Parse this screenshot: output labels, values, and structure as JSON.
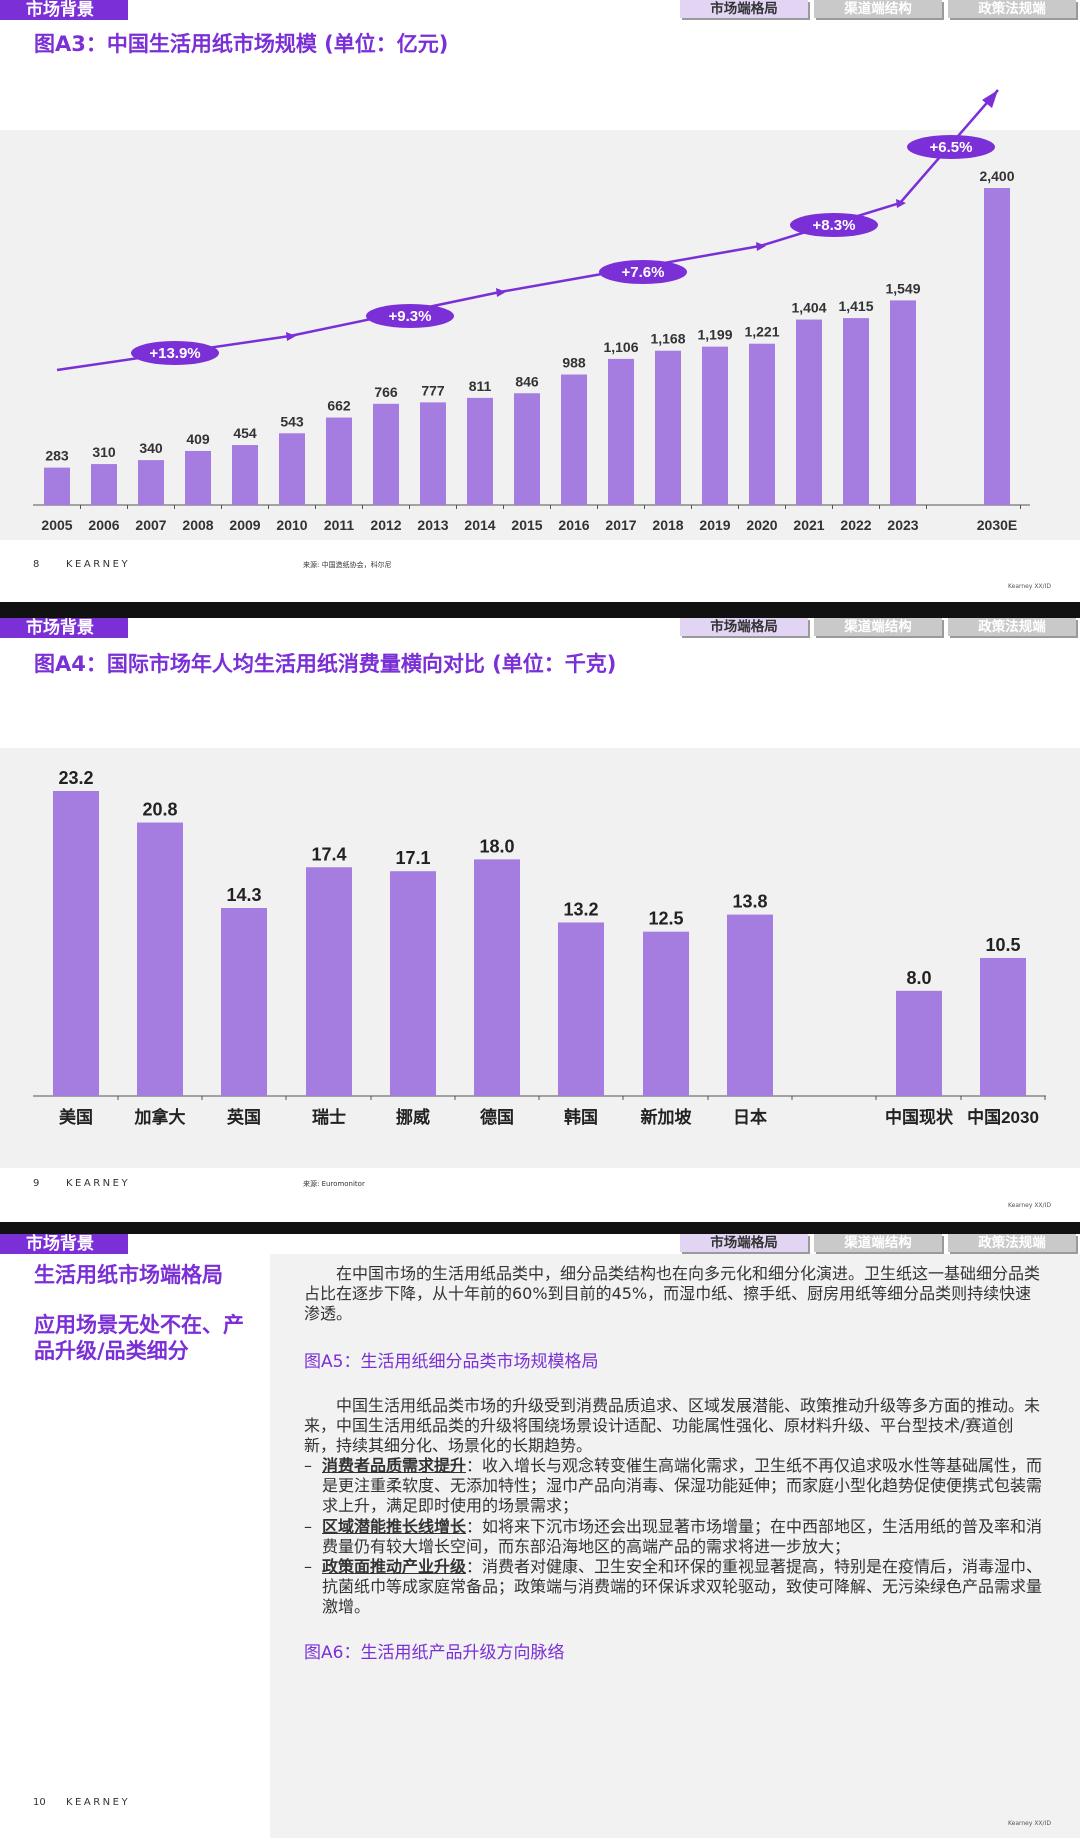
{
  "colors": {
    "accent": "#7b2fd6",
    "bar": "#a57de0",
    "plot_bg": "#f1f1f1"
  },
  "header": {
    "section_tag": "市场背景",
    "tabs": [
      {
        "label": "市场端格局",
        "active": true
      },
      {
        "label": "渠道端结构",
        "active": false
      },
      {
        "label": "政策法规端",
        "active": false
      }
    ]
  },
  "footer": {
    "brand": "KEARNEY",
    "corner": "Kearney XX/ID"
  },
  "slide1": {
    "title": "图A3：中国生活用纸市场规模 (单位：亿元)",
    "page": "8",
    "source": "来源: 中国造纸协会，科尔尼"
  },
  "slide2": {
    "title": "图A4：国际市场年人均生活用纸消费量横向对比 (单位：千克)",
    "page": "9",
    "source": "来源: Euromonitor"
  },
  "slide3": {
    "page": "10",
    "left_heading_1": "生活用纸市场端格局",
    "left_heading_2": "应用场景无处不在、产品升级/品类细分",
    "para1": "在中国市场的生活用纸品类中，细分品类结构也在向多元化和细分化演进。卫生纸这一基础细分品类占比在逐步下降，从十年前的60%到目前的45%，而湿巾纸、擦手纸、厨房用纸等细分品类则持续快速渗透。",
    "fig_a5": "图A5：生活用纸细分品类市场规模格局",
    "para2": "中国生活用纸品类市场的升级受到消费品质追求、区域发展潜能、政策推动升级等多方面的推动。未来，中国生活用纸品类的升级将围绕场景设计适配、功能属性强化、原材料升级、平台型技术/赛道创新，持续其细分化、场景化的长期趋势。",
    "bullet_dash": "–",
    "bullet1_title": "消费者品质需求提升",
    "bullet1_text": "：收入增长与观念转变催生高端化需求，卫生纸不再仅追求吸水性等基础属性，而是更注重柔软度、无添加特性；湿巾产品向消毒、保湿功能延伸；而家庭小型化趋势促使便携式包装需求上升，满足即时使用的场景需求；",
    "bullet2_title": "区域潜能推长线增长",
    "bullet2_text": "：如将来下沉市场还会出现显著市场增量；在中西部地区，生活用纸的普及率和消费量仍有较大增长空间，而东部沿海地区的高端产品的需求将进一步放大；",
    "bullet3_title": "政策面推动产业升级",
    "bullet3_text": "：消费者对健康、卫生安全和环保的重视显著提高，特别是在疫情后，消毒湿巾、抗菌纸巾等成家庭常备品；政策端与消费端的环保诉求双轮驱动，致使可降解、无污染绿色产品需求量激增。",
    "fig_a6": "图A6：生活用纸产品升级方向脉络"
  },
  "chart_data": [
    {
      "type": "bar",
      "title": "图A3：中国生活用纸市场规模 (单位：亿元)",
      "categories": [
        "2005",
        "2006",
        "2007",
        "2008",
        "2009",
        "2010",
        "2011",
        "2012",
        "2013",
        "2014",
        "2015",
        "2016",
        "2017",
        "2018",
        "2019",
        "2020",
        "2021",
        "2022",
        "2023",
        "2030E"
      ],
      "values": [
        283,
        310,
        340,
        409,
        454,
        543,
        662,
        766,
        777,
        811,
        846,
        988,
        1106,
        1168,
        1199,
        1221,
        1404,
        1415,
        1549,
        2400
      ],
      "value_labels": [
        "283",
        "310",
        "340",
        "409",
        "454",
        "543",
        "662",
        "766",
        "777",
        "811",
        "846",
        "988",
        "1,106",
        "1,168",
        "1,199",
        "1,221",
        "1,404",
        "1,415",
        "1,549",
        "2,400"
      ],
      "ylim": [
        0,
        2400
      ],
      "grid": false,
      "growth_annotations": [
        "+13.9%",
        "+9.3%",
        "+7.6%",
        "+8.3%",
        "+6.5%"
      ]
    },
    {
      "type": "bar",
      "title": "图A4：国际市场年人均生活用纸消费量横向对比 (单位：千克)",
      "categories": [
        "美国",
        "加拿大",
        "英国",
        "瑞士",
        "挪威",
        "德国",
        "韩国",
        "新加坡",
        "日本",
        "",
        "中国现状",
        "中国2030"
      ],
      "values": [
        23.2,
        20.8,
        14.3,
        17.4,
        17.1,
        18.0,
        13.2,
        12.5,
        13.8,
        null,
        8.0,
        10.5
      ],
      "value_labels": [
        "23.2",
        "20.8",
        "14.3",
        "17.4",
        "17.1",
        "18.0",
        "13.2",
        "12.5",
        "13.8",
        "",
        "8.0",
        "10.5"
      ],
      "ylim": [
        0,
        23.2
      ],
      "grid": false
    }
  ]
}
